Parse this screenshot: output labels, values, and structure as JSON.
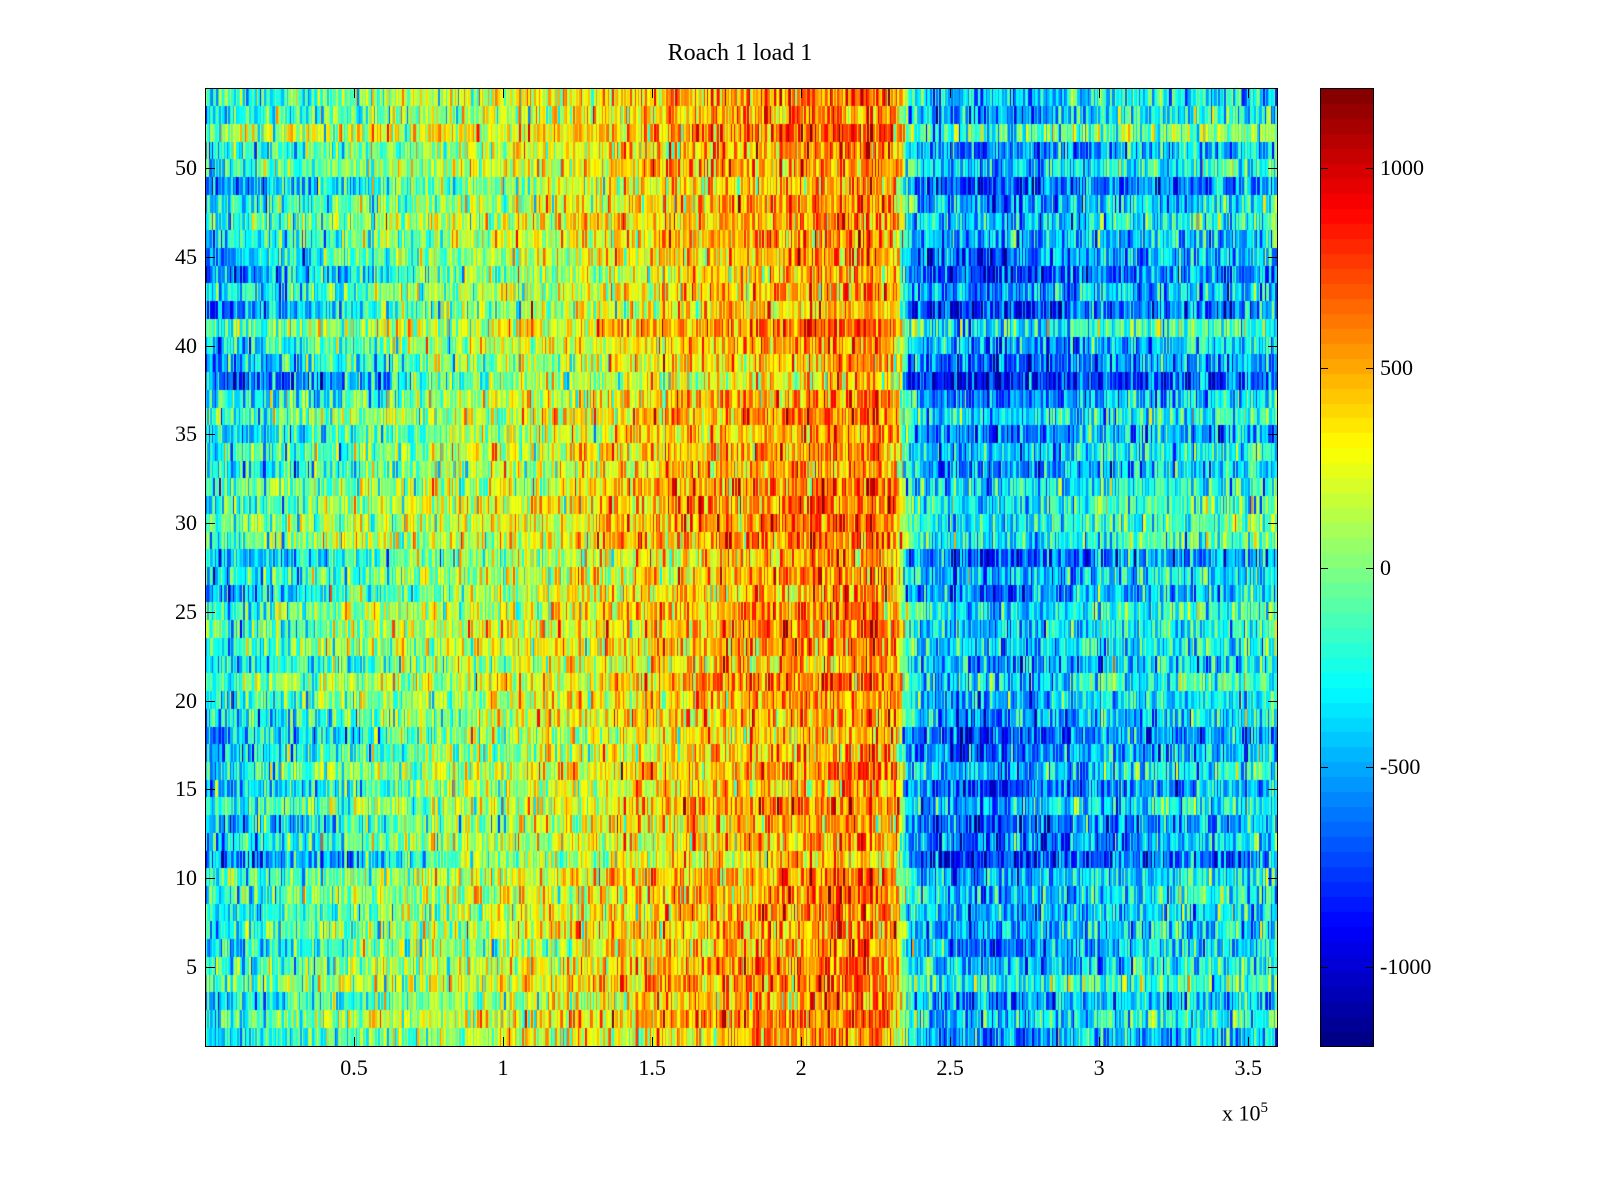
{
  "chart_data": {
    "type": "heatmap",
    "title": "Roach 1 load 1",
    "xlabel": "",
    "ylabel": "",
    "x_multiplier_label": "x 10",
    "x_multiplier_exponent": "5",
    "xlim": [
      0,
      360000
    ],
    "ylim": [
      0.5,
      54.5
    ],
    "rows": 54,
    "x_ticks": [
      0.5,
      1,
      1.5,
      2,
      2.5,
      3,
      3.5
    ],
    "x_tick_labels": [
      "0.5",
      "1",
      "1.5",
      "2",
      "2.5",
      "3",
      "3.5"
    ],
    "y_ticks": [
      5,
      10,
      15,
      20,
      25,
      30,
      35,
      40,
      45,
      50
    ],
    "y_tick_labels": [
      "5",
      "10",
      "15",
      "20",
      "25",
      "30",
      "35",
      "40",
      "45",
      "50"
    ],
    "colormap": "jet",
    "clim": [
      -1200,
      1200
    ],
    "colorbar_ticks": [
      1000,
      500,
      0,
      -500,
      -1000
    ],
    "colorbar_tick_labels": [
      "1000",
      "500",
      "0",
      "-500",
      "-1000"
    ],
    "column_mean_profile": {
      "x": [
        0,
        25000,
        50000,
        75000,
        100000,
        125000,
        150000,
        175000,
        200000,
        215000,
        225000,
        232000,
        236000,
        245000,
        260000,
        280000,
        300000,
        330000,
        360000
      ],
      "value": [
        -350,
        -200,
        -60,
        60,
        160,
        260,
        380,
        470,
        540,
        600,
        620,
        500,
        -300,
        -480,
        -560,
        -500,
        -380,
        -330,
        -300
      ]
    },
    "noise_std": 260
  }
}
